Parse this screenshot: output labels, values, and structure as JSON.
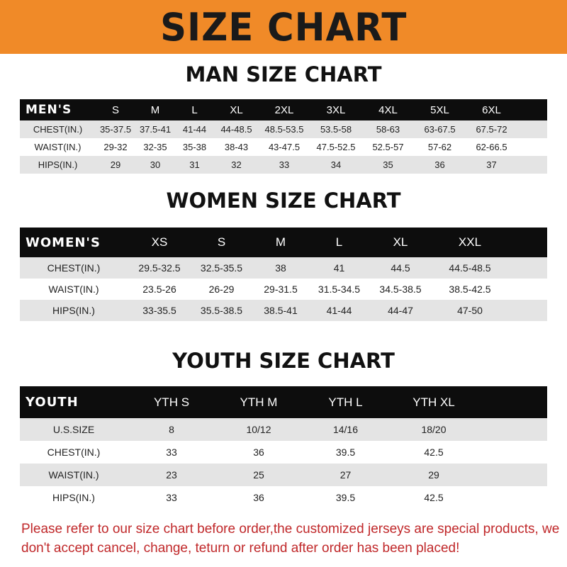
{
  "title": "SIZE CHART",
  "colors": {
    "banner": "#f08a28",
    "header_row": "#0d0d0d",
    "note": "#c0282a"
  },
  "men": {
    "heading": "MAN SIZE CHART",
    "header": [
      "MEN'S",
      "S",
      "M",
      "L",
      "XL",
      "2XL",
      "3XL",
      "4XL",
      "5XL",
      "6XL"
    ],
    "rows": [
      [
        "CHEST(IN.)",
        "35-37.5",
        "37.5-41",
        "41-44",
        "44-48.5",
        "48.5-53.5",
        "53.5-58",
        "58-63",
        "63-67.5",
        "67.5-72"
      ],
      [
        "WAIST(IN.)",
        "29-32",
        "32-35",
        "35-38",
        "38-43",
        "43-47.5",
        "47.5-52.5",
        "52.5-57",
        "57-62",
        "62-66.5"
      ],
      [
        "HIPS(IN.)",
        "29",
        "30",
        "31",
        "32",
        "33",
        "34",
        "35",
        "36",
        "37"
      ]
    ]
  },
  "women": {
    "heading": "WOMEN SIZE CHART",
    "header": [
      "WOMEN'S",
      "XS",
      "S",
      "M",
      "L",
      "XL",
      "XXL"
    ],
    "rows": [
      [
        "CHEST(IN.)",
        "29.5-32.5",
        "32.5-35.5",
        "38",
        "41",
        "44.5",
        "44.5-48.5"
      ],
      [
        "WAIST(IN.)",
        "23.5-26",
        "26-29",
        "29-31.5",
        "31.5-34.5",
        "34.5-38.5",
        "38.5-42.5"
      ],
      [
        "HIPS(IN.)",
        "33-35.5",
        "35.5-38.5",
        "38.5-41",
        "41-44",
        "44-47",
        "47-50"
      ]
    ]
  },
  "youth": {
    "heading": "YOUTH SIZE CHART",
    "header": [
      "YOUTH",
      "YTH S",
      "YTH M",
      "YTH L",
      "YTH XL"
    ],
    "rows": [
      [
        "U.S.SIZE",
        "8",
        "10/12",
        "14/16",
        "18/20"
      ],
      [
        "CHEST(IN.)",
        "33",
        "36",
        "39.5",
        "42.5"
      ],
      [
        "WAIST(IN.)",
        "23",
        "25",
        "27",
        "29"
      ],
      [
        "HIPS(IN.)",
        "33",
        "36",
        "39.5",
        "42.5"
      ]
    ]
  },
  "note": "Please refer to our size chart before order,the customized jerseys are special products, we don't accept cancel, change, teturn or refund after order has been placed!"
}
